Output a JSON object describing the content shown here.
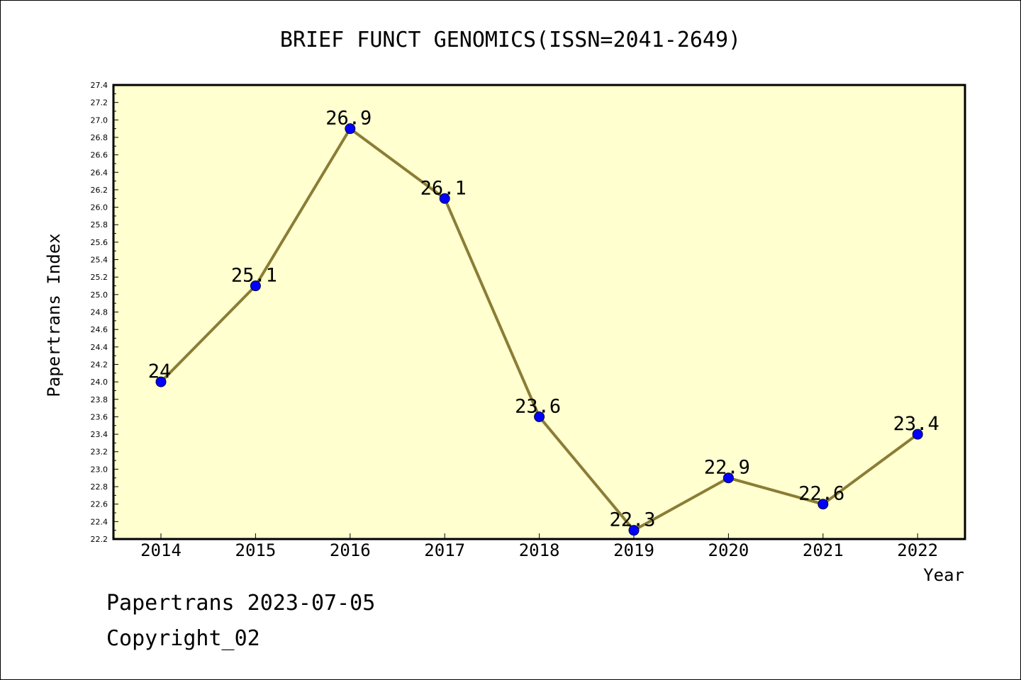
{
  "chart_data": {
    "type": "line",
    "title": "BRIEF FUNCT GENOMICS(ISSN=2041-2649)",
    "xlabel": "Year",
    "ylabel": "Papertrans Index",
    "categories": [
      "2014",
      "2015",
      "2016",
      "2017",
      "2018",
      "2019",
      "2020",
      "2021",
      "2022"
    ],
    "series": [
      {
        "values": [
          24,
          25.1,
          26.9,
          26.1,
          23.6,
          22.3,
          22.9,
          22.6,
          23.4
        ],
        "labels": [
          "24",
          "25.1",
          "26.9",
          "26.1",
          "23.6",
          "22.3",
          "22.9",
          "22.6",
          "23.4"
        ]
      }
    ],
    "ylim": [
      22.2,
      27.4
    ],
    "ytick_step": 0.2,
    "yticks": [
      "22.2",
      "22.4",
      "22.6",
      "22.8",
      "23.0",
      "23.2",
      "23.4",
      "23.6",
      "23.8",
      "24.0",
      "24.2",
      "24.4",
      "24.6",
      "24.8",
      "25.0",
      "25.2",
      "25.4",
      "25.6",
      "25.8",
      "26.0",
      "26.2",
      "26.4",
      "26.6",
      "26.8",
      "27.0",
      "27.2",
      "27.4"
    ],
    "grid": false,
    "legend": "none",
    "colors": {
      "plot_background": "#ffffd0",
      "line": "#8b7d35",
      "marker": "#0000ff",
      "axis": "#000000"
    }
  },
  "footer": {
    "line1": "Papertrans 2023-07-05",
    "line2": "Copyright_02"
  }
}
